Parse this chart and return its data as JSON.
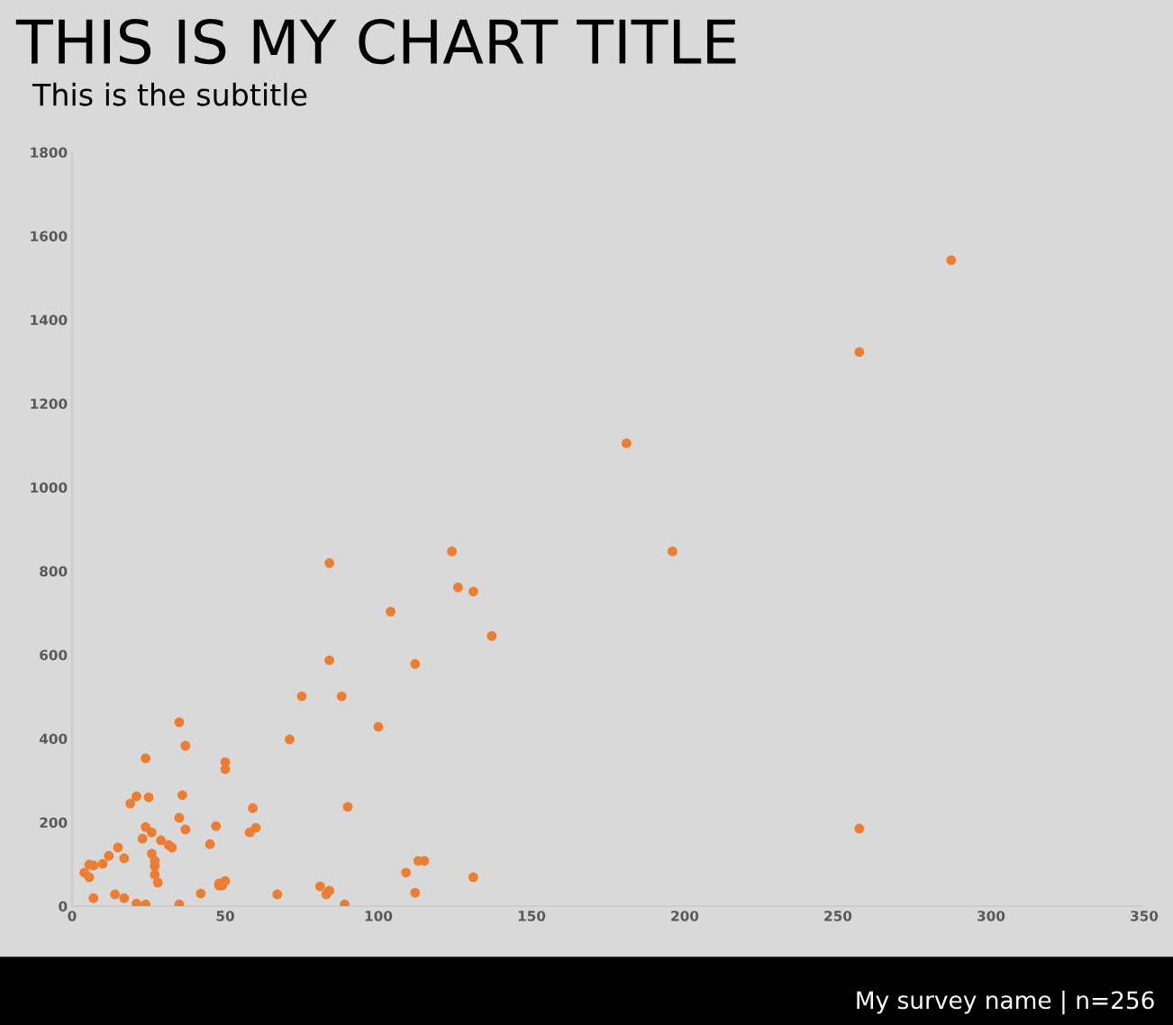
{
  "chart_data": {
    "type": "scatter",
    "title": "THIS IS MY CHART TITLE",
    "subtitle": "This is the subtitle",
    "annotations": [
      "My survey name | n=256"
    ],
    "series": [
      {
        "color": "#ed7d31",
        "x": [
          287,
          257,
          181,
          196,
          257,
          124,
          84,
          126,
          131,
          104,
          137,
          112,
          84,
          75,
          88,
          100,
          71,
          35,
          37,
          24,
          50,
          50,
          19,
          21,
          25,
          36,
          59,
          90,
          35,
          24,
          47,
          26,
          37,
          60,
          58,
          23,
          29,
          45,
          31.5,
          32.6,
          15,
          12,
          26,
          17,
          27,
          10,
          5.6,
          7,
          27,
          4,
          5.6,
          27,
          28,
          113,
          115,
          109,
          131,
          48,
          50,
          49,
          48,
          81,
          84,
          83,
          112,
          67,
          42,
          14,
          7,
          17,
          21,
          24,
          35,
          89
        ],
        "values": [
          1542,
          1323,
          1105,
          847,
          185,
          847,
          819,
          761,
          751,
          703,
          645,
          578,
          587,
          501,
          501,
          428,
          398,
          439,
          383,
          353,
          344,
          327,
          245,
          262,
          260,
          265,
          234,
          237,
          211,
          189,
          191,
          176,
          183,
          187,
          176,
          161,
          157,
          148,
          146,
          140,
          140,
          120,
          125,
          114,
          108,
          101,
          99,
          97,
          95,
          80,
          69,
          75,
          56,
          108,
          108,
          80,
          69,
          54,
          60,
          49,
          49,
          47,
          37,
          28,
          32,
          28,
          30,
          28,
          19,
          19,
          6,
          4,
          4,
          4
        ]
      }
    ],
    "xlim": [
      0,
      350
    ],
    "xticks": [
      0,
      50,
      100,
      150,
      200,
      250,
      300,
      350
    ],
    "ylim": [
      0,
      1800
    ],
    "yticks": [
      0,
      200,
      400,
      600,
      800,
      1000,
      1200,
      1400,
      1600,
      1800
    ],
    "marker": "circle",
    "grid": false,
    "legend": false
  }
}
